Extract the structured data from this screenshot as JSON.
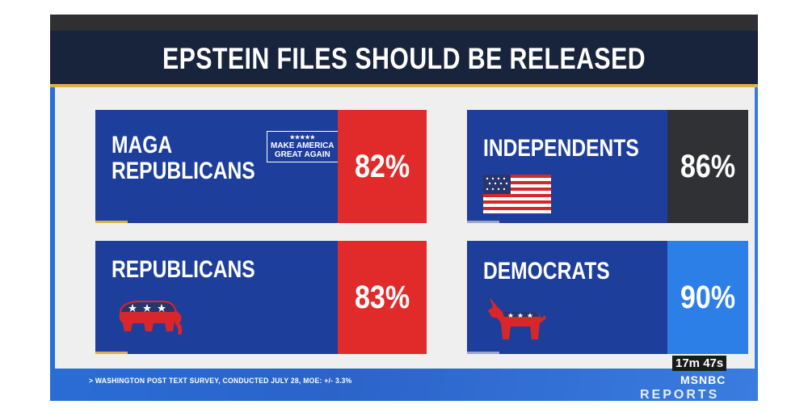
{
  "title": "EPSTEIN FILES SHOULD BE RELEASED",
  "cards": {
    "maga": {
      "line1": "MAGA",
      "line2": "REPUBLICANS",
      "badge_stars": "★★★★★",
      "badge_line1": "MAKE AMERICA",
      "badge_line2": "GREAT AGAIN",
      "pct": "82%",
      "pct_color": "#e12b2b"
    },
    "independents": {
      "label": "INDEPENDENTS",
      "pct": "86%",
      "pct_color": "#2f3135",
      "icon": "american-flag-icon"
    },
    "republicans": {
      "label": "REPUBLICANS",
      "pct": "83%",
      "pct_color": "#e12b2b",
      "icon": "elephant-icon"
    },
    "democrats": {
      "label": "DEMOCRATS",
      "pct": "90%",
      "pct_color": "#2b7fe6",
      "icon": "donkey-icon"
    }
  },
  "footer": "> WASHINGTON POST TEXT SURVEY, CONDUCTED JULY 28, MOE: +/- 3.3%",
  "timer": "17m 47s",
  "network": "MSNBC",
  "program": "REPORTS",
  "colors": {
    "card_blue": "#1d3e9a",
    "title_bg": "#17243b",
    "accent_gold": "#d9b24a"
  }
}
